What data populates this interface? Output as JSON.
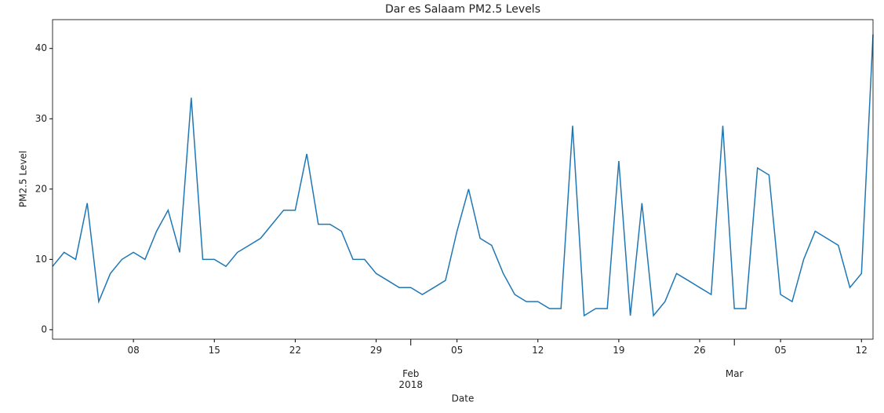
{
  "chart_data": {
    "type": "line",
    "title": "Dar es Salaam PM2.5 Levels",
    "xlabel": "Date",
    "ylabel": "PM2.5 Level",
    "x": [
      "2018-01-01",
      "2018-01-02",
      "2018-01-03",
      "2018-01-04",
      "2018-01-05",
      "2018-01-06",
      "2018-01-07",
      "2018-01-08",
      "2018-01-09",
      "2018-01-10",
      "2018-01-11",
      "2018-01-12",
      "2018-01-13",
      "2018-01-14",
      "2018-01-15",
      "2018-01-16",
      "2018-01-17",
      "2018-01-18",
      "2018-01-19",
      "2018-01-20",
      "2018-01-21",
      "2018-01-22",
      "2018-01-23",
      "2018-01-24",
      "2018-01-25",
      "2018-01-26",
      "2018-01-27",
      "2018-01-28",
      "2018-01-29",
      "2018-01-30",
      "2018-01-31",
      "2018-02-01",
      "2018-02-02",
      "2018-02-03",
      "2018-02-04",
      "2018-02-05",
      "2018-02-06",
      "2018-02-07",
      "2018-02-08",
      "2018-02-09",
      "2018-02-10",
      "2018-02-11",
      "2018-02-12",
      "2018-02-13",
      "2018-02-14",
      "2018-02-15",
      "2018-02-16",
      "2018-02-17",
      "2018-02-18",
      "2018-02-19",
      "2018-02-20",
      "2018-02-21",
      "2018-02-22",
      "2018-02-23",
      "2018-02-24",
      "2018-02-25",
      "2018-02-26",
      "2018-02-27",
      "2018-02-28",
      "2018-03-01",
      "2018-03-02",
      "2018-03-03",
      "2018-03-04",
      "2018-03-05",
      "2018-03-06",
      "2018-03-07",
      "2018-03-08",
      "2018-03-09",
      "2018-03-10",
      "2018-03-11",
      "2018-03-12",
      "2018-03-13"
    ],
    "series": [
      {
        "name": "PM2.5 Level",
        "color": "#1f77b4",
        "values": [
          9,
          11,
          10,
          18,
          4,
          8,
          10,
          11,
          10,
          14,
          17,
          11,
          33,
          10,
          10,
          9,
          11,
          12,
          13,
          15,
          17,
          17,
          25,
          15,
          15,
          14,
          10,
          10,
          8,
          7,
          6,
          6,
          5,
          6,
          7,
          14,
          20,
          13,
          12,
          8,
          5,
          4,
          4,
          3,
          3,
          29,
          2,
          3,
          3,
          24,
          2,
          18,
          2,
          4,
          8,
          7,
          6,
          5,
          29,
          3,
          3,
          23,
          22,
          5,
          4,
          10,
          14,
          13,
          12,
          6,
          8,
          42
        ]
      }
    ],
    "xlim": [
      "2018-01-01",
      "2018-03-13"
    ],
    "xticks": [
      {
        "value": "2018-01-08",
        "label": "08"
      },
      {
        "value": "2018-01-15",
        "label": "15"
      },
      {
        "value": "2018-01-22",
        "label": "22"
      },
      {
        "value": "2018-01-29",
        "label": "29"
      },
      {
        "value": "2018-02-01",
        "label": "Feb\n2018"
      },
      {
        "value": "2018-02-05",
        "label": "05"
      },
      {
        "value": "2018-02-12",
        "label": "12"
      },
      {
        "value": "2018-02-19",
        "label": "19"
      },
      {
        "value": "2018-02-26",
        "label": "26"
      },
      {
        "value": "2018-03-01",
        "label": "Mar"
      },
      {
        "value": "2018-03-05",
        "label": "05"
      },
      {
        "value": "2018-03-12",
        "label": "12"
      }
    ],
    "ylim": [
      -1.35,
      44.1
    ],
    "yticks": [
      0,
      10,
      20,
      30,
      40
    ]
  }
}
